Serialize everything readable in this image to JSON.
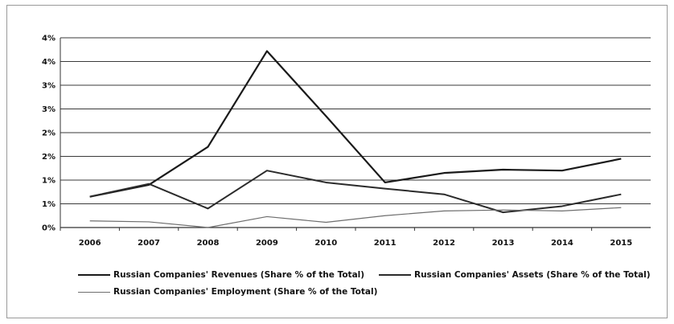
{
  "chart_data": {
    "type": "line",
    "title": "",
    "xlabel": "",
    "ylabel": "",
    "categories": [
      "2006",
      "2007",
      "2008",
      "2009",
      "2010",
      "2011",
      "2012",
      "2013",
      "2014",
      "2015"
    ],
    "ytick_labels": [
      "0%",
      "1%",
      "1%",
      "2%",
      "2%",
      "3%",
      "3%",
      "4%",
      "4%"
    ],
    "ylim": [
      0,
      4
    ],
    "grid": "horizontal",
    "legend_placement": "bottom",
    "series": [
      {
        "name": "Russian Companies' Revenues (Share % of the Total)",
        "values": [
          0.65,
          0.9,
          1.7,
          3.72,
          2.35,
          0.95,
          1.15,
          1.22,
          1.2,
          1.45
        ],
        "color": "#1a1a1a",
        "stroke": 2.2
      },
      {
        "name": "Russian Companies' Assets (Share % of the Total)",
        "values": [
          0.65,
          0.92,
          0.4,
          1.2,
          0.95,
          0.82,
          0.7,
          0.32,
          0.45,
          0.7
        ],
        "color": "#2b2b2b",
        "stroke": 2.0
      },
      {
        "name": "Russian Companies' Employment (Share % of the Total)",
        "values": [
          0.14,
          0.12,
          0.0,
          0.23,
          0.11,
          0.25,
          0.35,
          0.37,
          0.35,
          0.42
        ],
        "color": "#6e6e6e",
        "stroke": 1.2
      }
    ]
  }
}
